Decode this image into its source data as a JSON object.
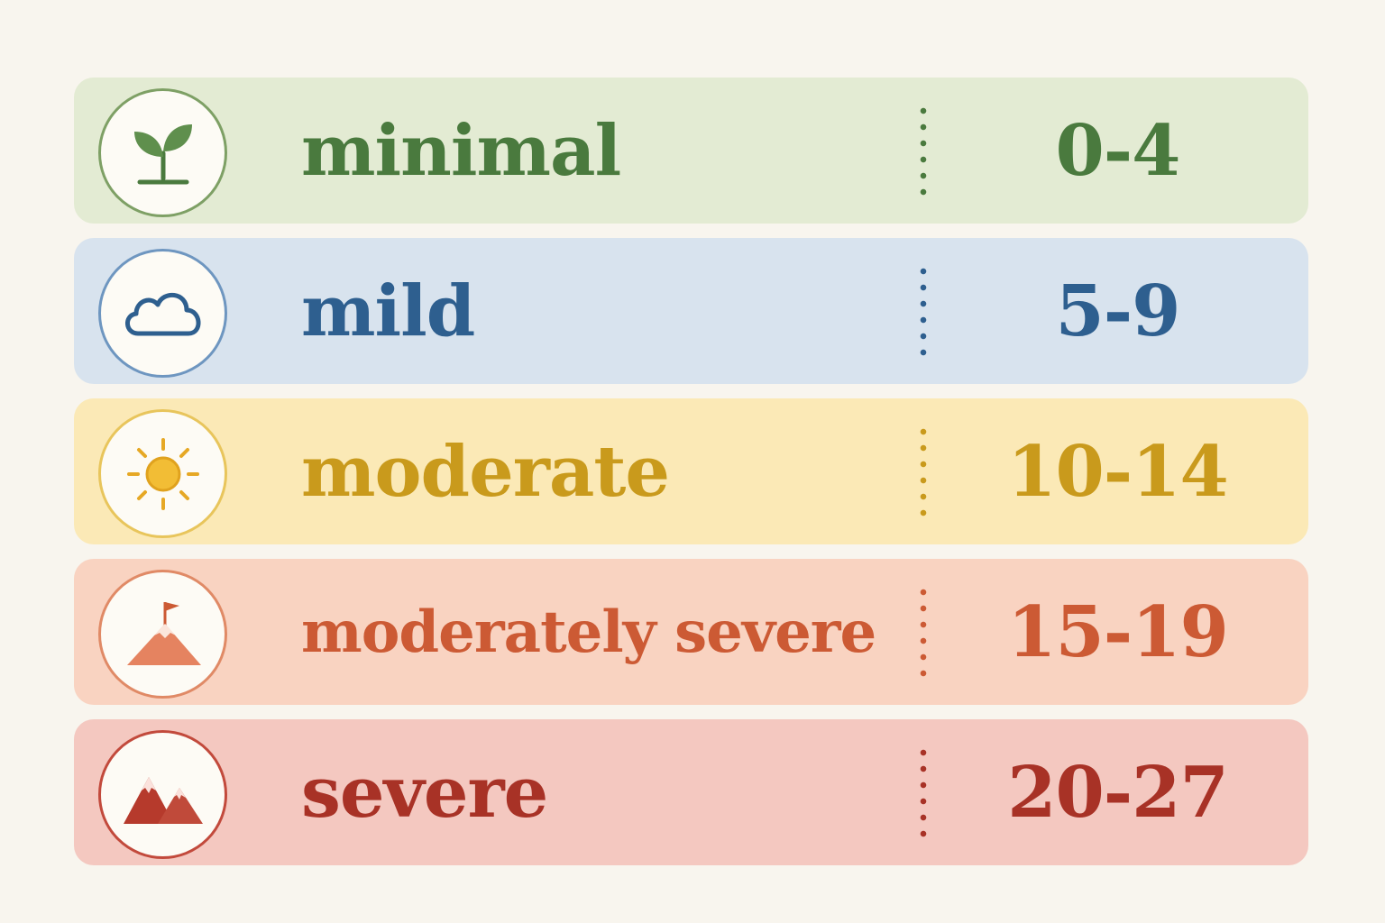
{
  "rows": [
    {
      "label": "minimal",
      "range": "0-4",
      "icon": "sprout-icon",
      "bg": "#e3ebd3",
      "fg": "#4a7a3e",
      "ring": "#7ea065"
    },
    {
      "label": "mild",
      "range": "5-9",
      "icon": "cloud-icon",
      "bg": "#d8e3ee",
      "fg": "#2e5f8f",
      "ring": "#6e96c0"
    },
    {
      "label": "moderate",
      "range": "10-14",
      "icon": "sun-icon",
      "bg": "#fbe9b6",
      "fg": "#c99a1c",
      "ring": "#e8c55c"
    },
    {
      "label": "moderately severe",
      "range": "15-19",
      "icon": "mountain-flag-icon",
      "bg": "#f9d3c1",
      "fg": "#cc5a34",
      "ring": "#e08a66"
    },
    {
      "label": "severe",
      "range": "20-27",
      "icon": "mountains-icon",
      "bg": "#f4c8c0",
      "fg": "#a83226",
      "ring": "#c24a3c"
    }
  ]
}
